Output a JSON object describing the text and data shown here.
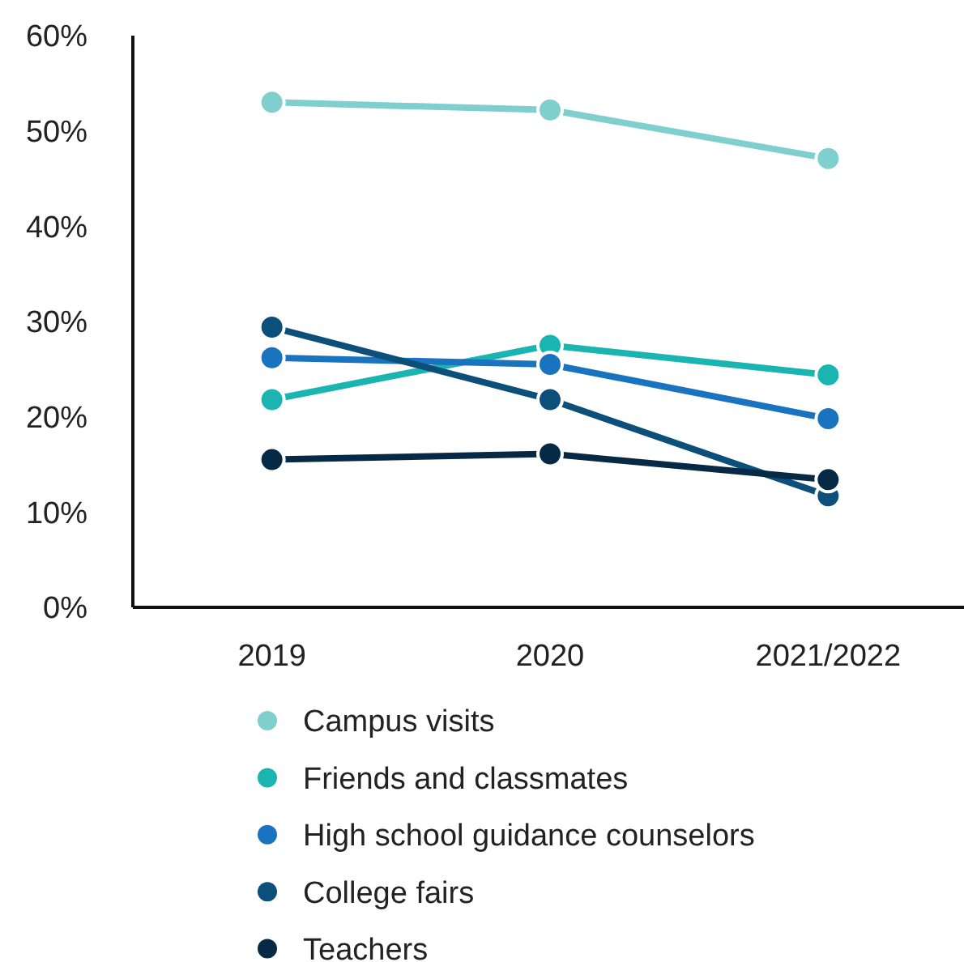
{
  "chart_data": {
    "type": "line",
    "categories": [
      "2019",
      "2020",
      "2021/2022"
    ],
    "ylim": [
      0,
      60
    ],
    "yticks": [
      {
        "value": 0,
        "label": "0%"
      },
      {
        "value": 10,
        "label": "10%"
      },
      {
        "value": 20,
        "label": "20%"
      },
      {
        "value": 30,
        "label": "30%"
      },
      {
        "value": 40,
        "label": "40%"
      },
      {
        "value": 50,
        "label": "50%"
      },
      {
        "value": 60,
        "label": "60%"
      }
    ],
    "marker": "circle",
    "legend": "bottom",
    "series": [
      {
        "name": "Campus visits",
        "color": "#7fcfcf",
        "values": [
          53,
          52.2,
          47.1
        ]
      },
      {
        "name": "Friends and classmates",
        "color": "#1ab5b0",
        "values": [
          21.8,
          27.5,
          24.4
        ]
      },
      {
        "name": "High school guidance counselors",
        "color": "#1a73bf",
        "values": [
          26.2,
          25.5,
          19.8
        ]
      },
      {
        "name": "College fairs",
        "color": "#0b4f7a",
        "values": [
          29.4,
          21.8,
          11.7
        ]
      },
      {
        "name": "Teachers",
        "color": "#062a45",
        "values": [
          15.5,
          16.1,
          13.4
        ]
      }
    ]
  }
}
